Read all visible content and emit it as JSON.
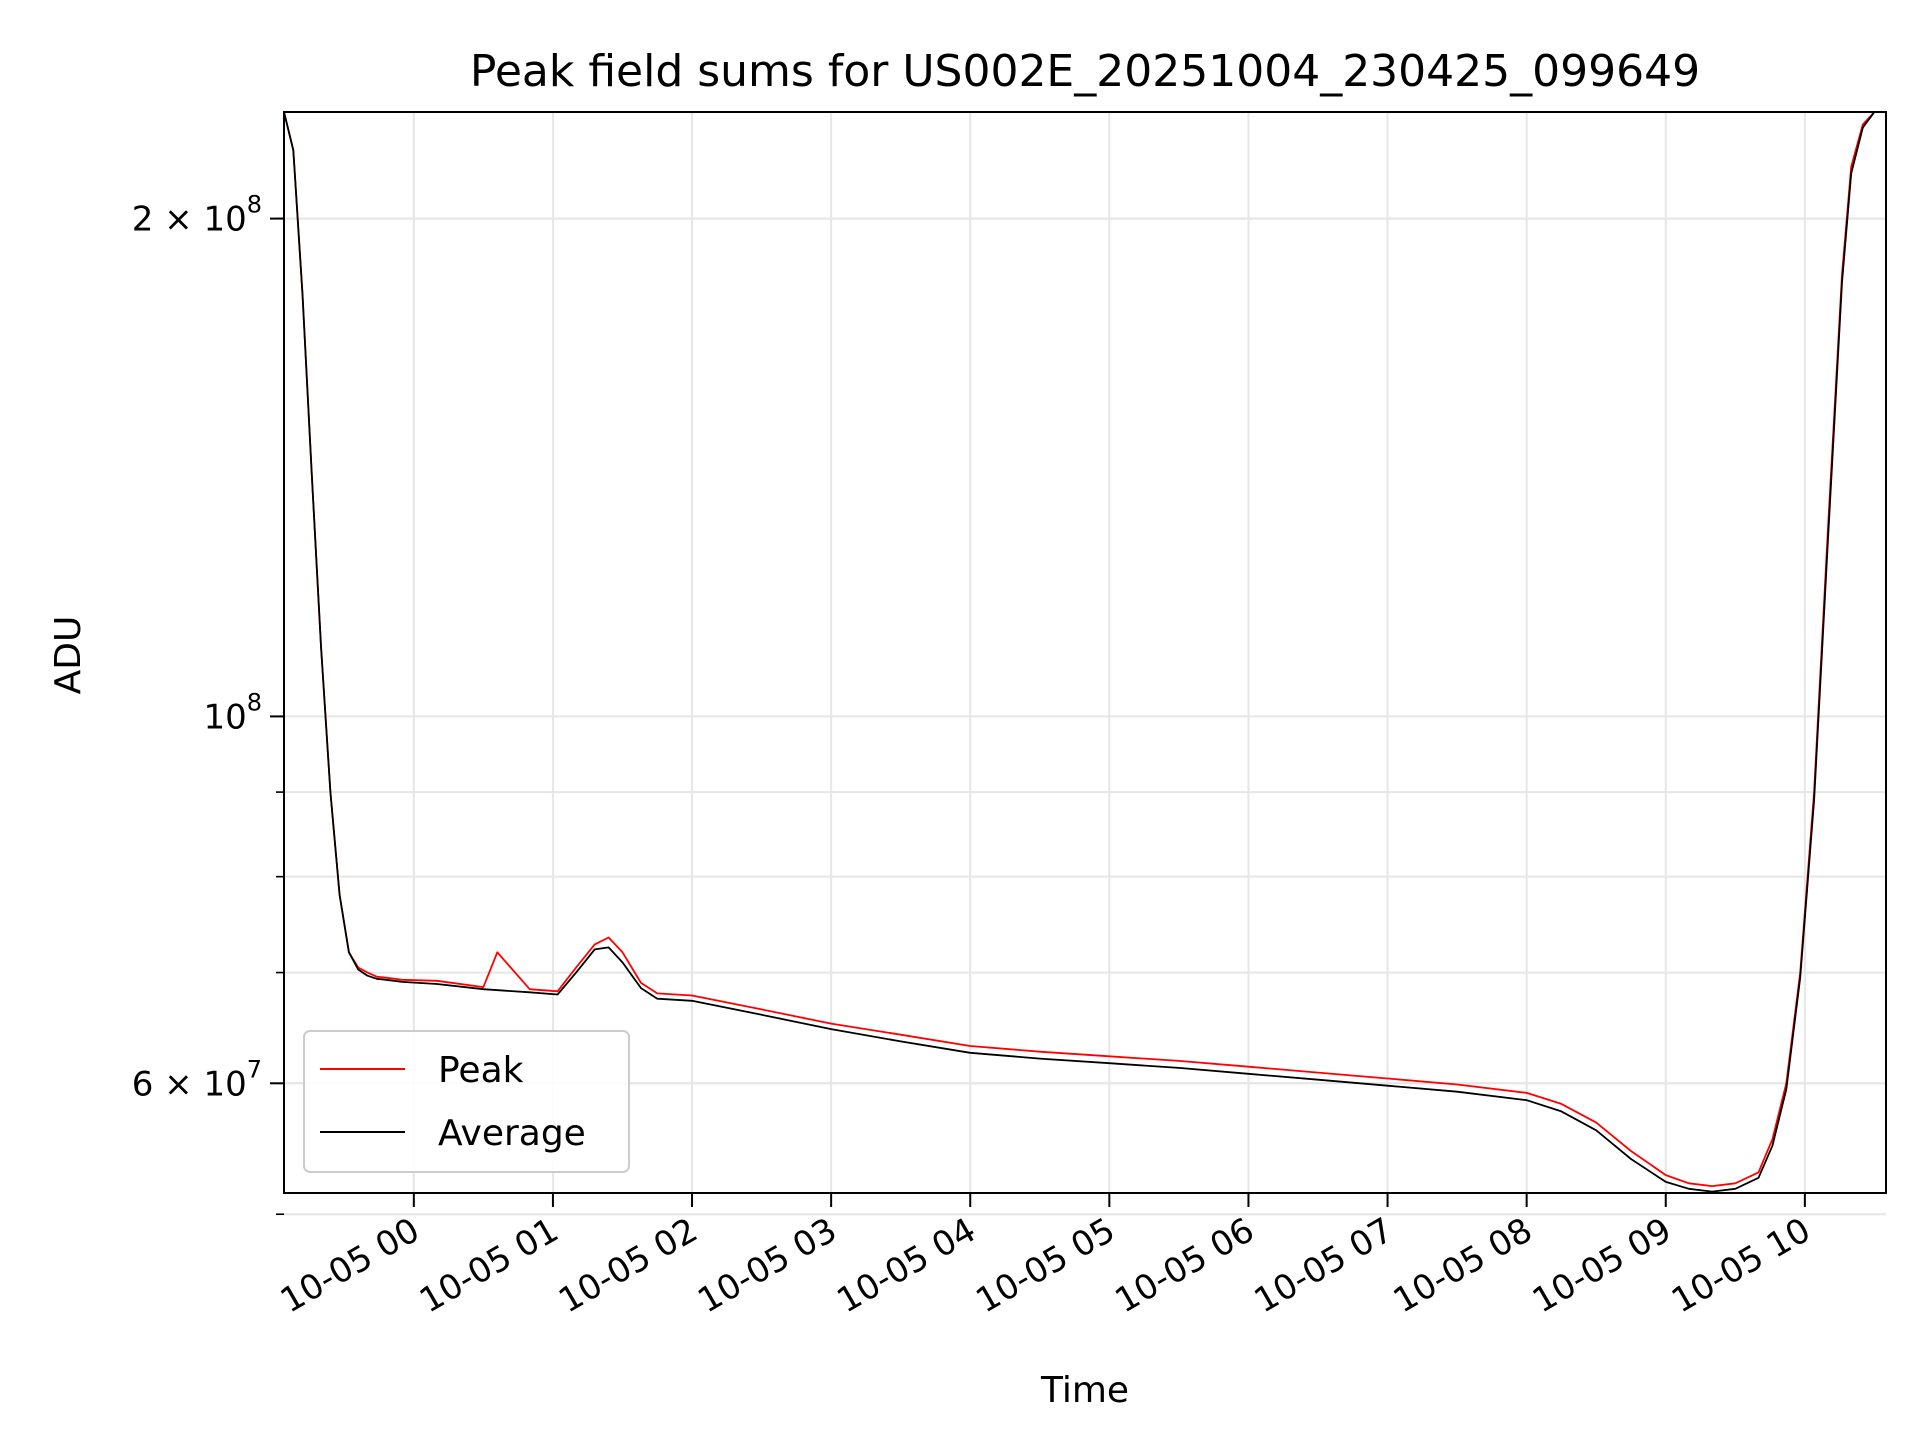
{
  "chart_data": {
    "type": "line",
    "title": "Peak field sums for US002E_20251004_230425_099649",
    "xlabel": "Time",
    "ylabel": "ADU",
    "yscale": "log",
    "grid": true,
    "legend_position": "lower-left",
    "xlim": [
      "2025-10-04 23:04",
      "2025-10-05 10:35"
    ],
    "ylim": [
      51500000,
      232000000
    ],
    "x_ticks": [
      "10-05 00",
      "10-05 01",
      "10-05 02",
      "10-05 03",
      "10-05 04",
      "10-05 05",
      "10-05 06",
      "10-05 07",
      "10-05 08",
      "10-05 09",
      "10-05 10"
    ],
    "x_tick_values": [
      "2025-10-05 00:00",
      "2025-10-05 01:00",
      "2025-10-05 02:00",
      "2025-10-05 03:00",
      "2025-10-05 04:00",
      "2025-10-05 05:00",
      "2025-10-05 06:00",
      "2025-10-05 07:00",
      "2025-10-05 08:00",
      "2025-10-05 09:00",
      "2025-10-05 10:00"
    ],
    "y_major_ticks": [
      {
        "value": 60000000,
        "mantissa": "6",
        "exp": "7"
      },
      {
        "value": 100000000,
        "mantissa": "",
        "exp": "8"
      },
      {
        "value": 200000000,
        "mantissa": "2",
        "exp": "8"
      }
    ],
    "y_minor_ticks": [
      50000000,
      60000000,
      70000000,
      80000000,
      90000000,
      200000000
    ],
    "series": [
      {
        "name": "Peak",
        "color": "#ff0000",
        "x": [
          "2025-10-04 23:04",
          "2025-10-04 23:08",
          "2025-10-04 23:12",
          "2025-10-04 23:16",
          "2025-10-04 23:20",
          "2025-10-04 23:24",
          "2025-10-04 23:28",
          "2025-10-04 23:32",
          "2025-10-04 23:36",
          "2025-10-04 23:40",
          "2025-10-04 23:44",
          "2025-10-04 23:48",
          "2025-10-04 23:55",
          "2025-10-05 00:10",
          "2025-10-05 00:30",
          "2025-10-05 00:36",
          "2025-10-05 00:50",
          "2025-10-05 01:02",
          "2025-10-05 01:10",
          "2025-10-05 01:18",
          "2025-10-05 01:24",
          "2025-10-05 01:30",
          "2025-10-05 01:38",
          "2025-10-05 01:45",
          "2025-10-05 02:00",
          "2025-10-05 02:30",
          "2025-10-05 03:00",
          "2025-10-05 03:30",
          "2025-10-05 04:00",
          "2025-10-05 04:30",
          "2025-10-05 05:00",
          "2025-10-05 05:30",
          "2025-10-05 06:00",
          "2025-10-05 06:30",
          "2025-10-05 07:00",
          "2025-10-05 07:30",
          "2025-10-05 08:00",
          "2025-10-05 08:15",
          "2025-10-05 08:30",
          "2025-10-05 08:45",
          "2025-10-05 09:00",
          "2025-10-05 09:10",
          "2025-10-05 09:20",
          "2025-10-05 09:30",
          "2025-10-05 09:40",
          "2025-10-05 09:46",
          "2025-10-05 09:52",
          "2025-10-05 09:58",
          "2025-10-05 10:04",
          "2025-10-05 10:10",
          "2025-10-05 10:16",
          "2025-10-05 10:20",
          "2025-10-05 10:25",
          "2025-10-05 10:30"
        ],
        "values": [
          232000000,
          220000000,
          180000000,
          140000000,
          110000000,
          90000000,
          78000000,
          72000000,
          70500000,
          70000000,
          69600000,
          69500000,
          69300000,
          69200000,
          68600000,
          72000000,
          68400000,
          68200000,
          70500000,
          72800000,
          73500000,
          72000000,
          69000000,
          68000000,
          67800000,
          66500000,
          65200000,
          64200000,
          63200000,
          62700000,
          62300000,
          61900000,
          61400000,
          60900000,
          60400000,
          59900000,
          59200000,
          58300000,
          56800000,
          54600000,
          52800000,
          52200000,
          52000000,
          52200000,
          53000000,
          55500000,
          60000000,
          70000000,
          90000000,
          130000000,
          185000000,
          215000000,
          228000000,
          232000000
        ]
      },
      {
        "name": "Average",
        "color": "#000000",
        "x": [
          "2025-10-04 23:04",
          "2025-10-04 23:08",
          "2025-10-04 23:12",
          "2025-10-04 23:16",
          "2025-10-04 23:20",
          "2025-10-04 23:24",
          "2025-10-04 23:28",
          "2025-10-04 23:32",
          "2025-10-04 23:36",
          "2025-10-04 23:40",
          "2025-10-04 23:44",
          "2025-10-04 23:48",
          "2025-10-04 23:55",
          "2025-10-05 00:10",
          "2025-10-05 00:30",
          "2025-10-05 00:50",
          "2025-10-05 01:02",
          "2025-10-05 01:10",
          "2025-10-05 01:18",
          "2025-10-05 01:24",
          "2025-10-05 01:30",
          "2025-10-05 01:38",
          "2025-10-05 01:45",
          "2025-10-05 02:00",
          "2025-10-05 02:30",
          "2025-10-05 03:00",
          "2025-10-05 03:30",
          "2025-10-05 04:00",
          "2025-10-05 04:30",
          "2025-10-05 05:00",
          "2025-10-05 05:30",
          "2025-10-05 06:00",
          "2025-10-05 06:30",
          "2025-10-05 07:00",
          "2025-10-05 07:30",
          "2025-10-05 08:00",
          "2025-10-05 08:15",
          "2025-10-05 08:30",
          "2025-10-05 08:45",
          "2025-10-05 09:00",
          "2025-10-05 09:10",
          "2025-10-05 09:20",
          "2025-10-05 09:30",
          "2025-10-05 09:40",
          "2025-10-05 09:46",
          "2025-10-05 09:52",
          "2025-10-05 09:58",
          "2025-10-05 10:04",
          "2025-10-05 10:10",
          "2025-10-05 10:16",
          "2025-10-05 10:20",
          "2025-10-05 10:25",
          "2025-10-05 10:30"
        ],
        "values": [
          232000000,
          220000000,
          180000000,
          140000000,
          110000000,
          90000000,
          78000000,
          72000000,
          70300000,
          69700000,
          69400000,
          69300000,
          69100000,
          68900000,
          68400000,
          68100000,
          67900000,
          70000000,
          72300000,
          72500000,
          71000000,
          68500000,
          67500000,
          67300000,
          66000000,
          64700000,
          63600000,
          62600000,
          62100000,
          61700000,
          61300000,
          60800000,
          60300000,
          59800000,
          59300000,
          58600000,
          57700000,
          56200000,
          54000000,
          52300000,
          51800000,
          51600000,
          51800000,
          52600000,
          55000000,
          59500000,
          69500000,
          89000000,
          128000000,
          183000000,
          213000000,
          227000000,
          232000000
        ]
      }
    ]
  }
}
